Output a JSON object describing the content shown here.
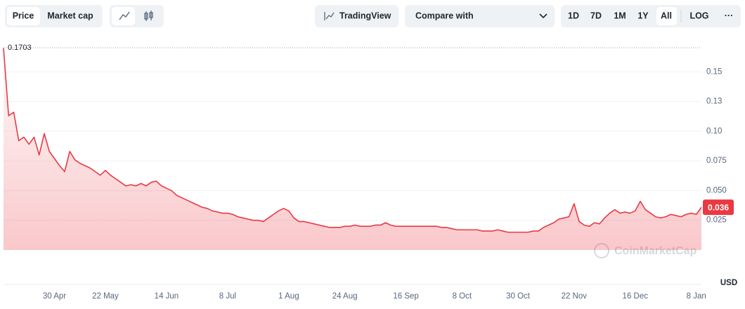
{
  "toolbar": {
    "price": "Price",
    "market_cap": "Market cap",
    "tradingview": "TradingView",
    "compare": "Compare with",
    "ranges": [
      "1D",
      "7D",
      "1M",
      "1Y",
      "All"
    ],
    "log": "LOG",
    "more": "···"
  },
  "chart_data": {
    "type": "line",
    "color": "#ea3943",
    "categories": [
      null,
      null,
      null,
      null,
      null,
      null,
      null,
      null,
      null,
      null,
      "30 Apr",
      null,
      null,
      null,
      null,
      null,
      null,
      null,
      null,
      null,
      "22 May",
      null,
      null,
      null,
      null,
      null,
      null,
      null,
      null,
      null,
      null,
      null,
      "14 Jun",
      null,
      null,
      null,
      null,
      null,
      null,
      null,
      null,
      null,
      null,
      null,
      "8 Jul",
      null,
      null,
      null,
      null,
      null,
      null,
      null,
      null,
      null,
      null,
      null,
      "1 Aug",
      null,
      null,
      null,
      null,
      null,
      null,
      null,
      null,
      null,
      null,
      "24 Aug",
      null,
      null,
      null,
      null,
      null,
      null,
      null,
      null,
      null,
      null,
      null,
      "16 Sep",
      null,
      null,
      null,
      null,
      null,
      null,
      null,
      null,
      null,
      null,
      "8 Oct",
      null,
      null,
      null,
      null,
      null,
      null,
      null,
      null,
      null,
      null,
      "30 Oct",
      null,
      null,
      null,
      null,
      null,
      null,
      null,
      null,
      null,
      null,
      "22 Nov",
      null,
      null,
      null,
      null,
      null,
      null,
      null,
      null,
      null,
      null,
      null,
      "16 Dec",
      null,
      null,
      null,
      null,
      null,
      null,
      null,
      null,
      null,
      null,
      null,
      "8 Jan",
      null
    ],
    "values": [
      0.17,
      0.113,
      0.116,
      0.092,
      0.095,
      0.089,
      0.095,
      0.08,
      0.098,
      0.083,
      0.077,
      0.071,
      0.066,
      0.083,
      0.076,
      0.073,
      0.071,
      0.069,
      0.066,
      0.063,
      0.067,
      0.063,
      0.06,
      0.057,
      0.054,
      0.055,
      0.054,
      0.056,
      0.054,
      0.057,
      0.058,
      0.054,
      0.052,
      0.05,
      0.046,
      0.044,
      0.042,
      0.04,
      0.038,
      0.036,
      0.035,
      0.033,
      0.032,
      0.031,
      0.031,
      0.03,
      0.028,
      0.027,
      0.026,
      0.025,
      0.025,
      0.024,
      0.027,
      0.03,
      0.033,
      0.035,
      0.033,
      0.027,
      0.024,
      0.024,
      0.023,
      0.022,
      0.021,
      0.02,
      0.019,
      0.019,
      0.019,
      0.02,
      0.02,
      0.021,
      0.02,
      0.02,
      0.02,
      0.021,
      0.021,
      0.023,
      0.021,
      0.02,
      0.02,
      0.02,
      0.02,
      0.02,
      0.02,
      0.02,
      0.02,
      0.02,
      0.019,
      0.019,
      0.018,
      0.017,
      0.017,
      0.017,
      0.017,
      0.017,
      0.016,
      0.016,
      0.016,
      0.017,
      0.016,
      0.015,
      0.015,
      0.015,
      0.015,
      0.015,
      0.016,
      0.016,
      0.019,
      0.021,
      0.023,
      0.026,
      0.027,
      0.028,
      0.039,
      0.024,
      0.021,
      0.02,
      0.023,
      0.022,
      0.027,
      0.031,
      0.034,
      0.031,
      0.032,
      0.031,
      0.033,
      0.041,
      0.034,
      0.031,
      0.028,
      0.027,
      0.028,
      0.03,
      0.029,
      0.028,
      0.03,
      0.031,
      0.03,
      0.036
    ],
    "ylim": [
      0,
      0.175
    ],
    "yticks": [
      0.025,
      {
        "value": 0.05,
        "label": "0.050"
      },
      0.075,
      {
        "value": 0.1,
        "label": "0.10"
      },
      {
        "value": 0.125,
        "label": "0.13"
      },
      0.15
    ],
    "grid": true,
    "max_price": 0.1703,
    "current_price": 0.036,
    "unit_label": "USD",
    "watermark": "CoinMarketCap"
  }
}
